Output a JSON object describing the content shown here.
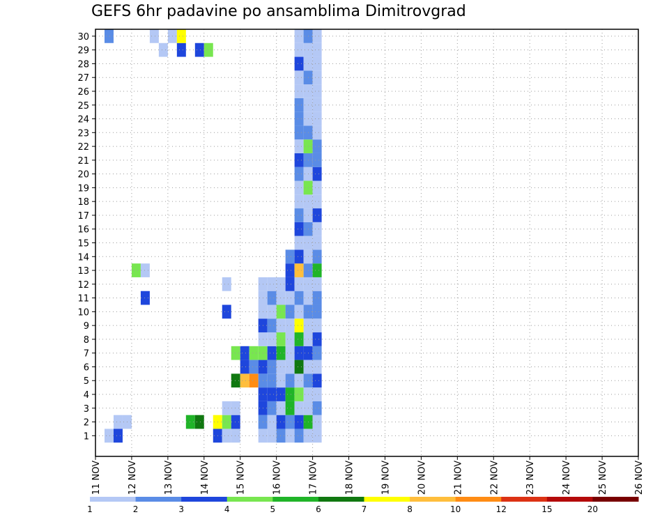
{
  "chart_data": {
    "type": "heatmap",
    "title": "GEFS 6hr padavine po ansamblima Dimitrovgrad",
    "x_ticks": [
      "11 NOV",
      "12 NOV",
      "13 NOV",
      "14 NOV",
      "15 NOV",
      "16 NOV",
      "17 NOV",
      "18 NOV",
      "19 NOV",
      "20 NOV",
      "21 NOV",
      "22 NOV",
      "23 NOV",
      "24 NOV",
      "25 NOV",
      "26 NOV"
    ],
    "y_ticks": [
      "1",
      "2",
      "3",
      "4",
      "5",
      "6",
      "7",
      "8",
      "9",
      "10",
      "11",
      "12",
      "13",
      "14",
      "15",
      "16",
      "17",
      "18",
      "19",
      "20",
      "21",
      "22",
      "23",
      "24",
      "25",
      "26",
      "27",
      "28",
      "29",
      "30"
    ],
    "colorbar": {
      "labels": [
        "1",
        "2",
        "3",
        "4",
        "5",
        "6",
        "7",
        "8",
        "10",
        "12",
        "15",
        "20"
      ],
      "colors": [
        "#b4c8f5",
        "#5a8ce6",
        "#1e46dc",
        "#78e650",
        "#20b428",
        "#107810",
        "#ffff00",
        "#ffbe3c",
        "#ff8c14",
        "#dc3214",
        "#b40a0a",
        "#780000"
      ]
    },
    "grid": true,
    "cells": [
      [
        0,
        1,
        1
      ],
      [
        0,
        30,
        2
      ],
      [
        1,
        1,
        3
      ],
      [
        1,
        2,
        1
      ],
      [
        2,
        2,
        1
      ],
      [
        3,
        13,
        4
      ],
      [
        4,
        11,
        3
      ],
      [
        4,
        13,
        1
      ],
      [
        5,
        30,
        1
      ],
      [
        6,
        29,
        1
      ],
      [
        7,
        30,
        1
      ],
      [
        8,
        29,
        3
      ],
      [
        8,
        30,
        7
      ],
      [
        9,
        2,
        5
      ],
      [
        10,
        2,
        6
      ],
      [
        10,
        29,
        3
      ],
      [
        11,
        29,
        4
      ],
      [
        12,
        1,
        3
      ],
      [
        12,
        2,
        7
      ],
      [
        13,
        1,
        1
      ],
      [
        13,
        2,
        4
      ],
      [
        13,
        3,
        1
      ],
      [
        13,
        10,
        3
      ],
      [
        13,
        12,
        1
      ],
      [
        14,
        1,
        1
      ],
      [
        14,
        2,
        3
      ],
      [
        14,
        3,
        1
      ],
      [
        14,
        5,
        6
      ],
      [
        14,
        7,
        4
      ],
      [
        15,
        5,
        8
      ],
      [
        15,
        6,
        3
      ],
      [
        15,
        7,
        3
      ],
      [
        16,
        5,
        9
      ],
      [
        16,
        7,
        4
      ],
      [
        16,
        6,
        2
      ],
      [
        17,
        1,
        1
      ],
      [
        17,
        2,
        2
      ],
      [
        17,
        3,
        3
      ],
      [
        17,
        4,
        3
      ],
      [
        17,
        5,
        2
      ],
      [
        17,
        6,
        3
      ],
      [
        17,
        7,
        4
      ],
      [
        17,
        8,
        1
      ],
      [
        17,
        9,
        3
      ],
      [
        17,
        10,
        1
      ],
      [
        17,
        11,
        1
      ],
      [
        17,
        12,
        1
      ],
      [
        18,
        1,
        1
      ],
      [
        18,
        2,
        1
      ],
      [
        18,
        3,
        2
      ],
      [
        18,
        4,
        3
      ],
      [
        18,
        5,
        2
      ],
      [
        18,
        6,
        2
      ],
      [
        18,
        7,
        3
      ],
      [
        18,
        8,
        1
      ],
      [
        18,
        9,
        2
      ],
      [
        18,
        10,
        1
      ],
      [
        18,
        11,
        2
      ],
      [
        18,
        12,
        1
      ],
      [
        19,
        1,
        2
      ],
      [
        19,
        2,
        3
      ],
      [
        19,
        3,
        1
      ],
      [
        19,
        4,
        3
      ],
      [
        19,
        5,
        1
      ],
      [
        19,
        6,
        1
      ],
      [
        19,
        7,
        5
      ],
      [
        19,
        8,
        4
      ],
      [
        19,
        9,
        1
      ],
      [
        19,
        10,
        4
      ],
      [
        19,
        11,
        1
      ],
      [
        19,
        12,
        1
      ],
      [
        20,
        1,
        1
      ],
      [
        20,
        2,
        2
      ],
      [
        20,
        3,
        5
      ],
      [
        20,
        4,
        5
      ],
      [
        20,
        5,
        2
      ],
      [
        20,
        6,
        1
      ],
      [
        20,
        7,
        1
      ],
      [
        20,
        8,
        1
      ],
      [
        20,
        9,
        1
      ],
      [
        20,
        10,
        2
      ],
      [
        20,
        11,
        1
      ],
      [
        20,
        12,
        3
      ],
      [
        20,
        13,
        3
      ],
      [
        20,
        14,
        2
      ],
      [
        21,
        1,
        2
      ],
      [
        21,
        2,
        3
      ],
      [
        21,
        3,
        1
      ],
      [
        21,
        4,
        4
      ],
      [
        21,
        5,
        1
      ],
      [
        21,
        6,
        6
      ],
      [
        21,
        7,
        3
      ],
      [
        21,
        8,
        5
      ],
      [
        21,
        9,
        7
      ],
      [
        21,
        10,
        1
      ],
      [
        21,
        11,
        2
      ],
      [
        21,
        12,
        1
      ],
      [
        21,
        13,
        8
      ],
      [
        21,
        14,
        3
      ],
      [
        21,
        15,
        1
      ],
      [
        21,
        16,
        3
      ],
      [
        21,
        17,
        2
      ],
      [
        21,
        18,
        1
      ],
      [
        21,
        19,
        1
      ],
      [
        21,
        20,
        2
      ],
      [
        21,
        21,
        3
      ],
      [
        21,
        22,
        1
      ],
      [
        21,
        23,
        2
      ],
      [
        21,
        24,
        2
      ],
      [
        21,
        25,
        2
      ],
      [
        21,
        26,
        1
      ],
      [
        21,
        27,
        1
      ],
      [
        21,
        28,
        3
      ],
      [
        21,
        29,
        1
      ],
      [
        21,
        30,
        1
      ],
      [
        22,
        1,
        1
      ],
      [
        22,
        2,
        5
      ],
      [
        22,
        3,
        1
      ],
      [
        22,
        4,
        1
      ],
      [
        22,
        5,
        2
      ],
      [
        22,
        6,
        1
      ],
      [
        22,
        7,
        3
      ],
      [
        22,
        8,
        1
      ],
      [
        22,
        9,
        1
      ],
      [
        22,
        10,
        2
      ],
      [
        22,
        11,
        1
      ],
      [
        22,
        12,
        1
      ],
      [
        22,
        13,
        2
      ],
      [
        22,
        14,
        1
      ],
      [
        22,
        15,
        1
      ],
      [
        22,
        16,
        2
      ],
      [
        22,
        17,
        1
      ],
      [
        22,
        18,
        1
      ],
      [
        22,
        19,
        4
      ],
      [
        22,
        20,
        1
      ],
      [
        22,
        21,
        2
      ],
      [
        22,
        22,
        4
      ],
      [
        22,
        23,
        2
      ],
      [
        22,
        24,
        1
      ],
      [
        22,
        25,
        1
      ],
      [
        22,
        26,
        1
      ],
      [
        22,
        27,
        2
      ],
      [
        22,
        28,
        1
      ],
      [
        22,
        29,
        1
      ],
      [
        22,
        30,
        2
      ],
      [
        23,
        1,
        1
      ],
      [
        23,
        2,
        1
      ],
      [
        23,
        3,
        2
      ],
      [
        23,
        4,
        1
      ],
      [
        23,
        5,
        3
      ],
      [
        23,
        6,
        1
      ],
      [
        23,
        7,
        2
      ],
      [
        23,
        8,
        3
      ],
      [
        23,
        9,
        1
      ],
      [
        23,
        10,
        2
      ],
      [
        23,
        11,
        2
      ],
      [
        23,
        12,
        1
      ],
      [
        23,
        13,
        5
      ],
      [
        23,
        14,
        2
      ],
      [
        23,
        15,
        1
      ],
      [
        23,
        16,
        1
      ],
      [
        23,
        17,
        3
      ],
      [
        23,
        18,
        1
      ],
      [
        23,
        19,
        1
      ],
      [
        23,
        20,
        3
      ],
      [
        23,
        21,
        2
      ],
      [
        23,
        22,
        2
      ],
      [
        23,
        23,
        1
      ],
      [
        23,
        24,
        1
      ],
      [
        23,
        25,
        1
      ],
      [
        23,
        26,
        1
      ],
      [
        23,
        27,
        1
      ],
      [
        23,
        28,
        1
      ],
      [
        23,
        29,
        1
      ],
      [
        23,
        30,
        1
      ]
    ]
  }
}
